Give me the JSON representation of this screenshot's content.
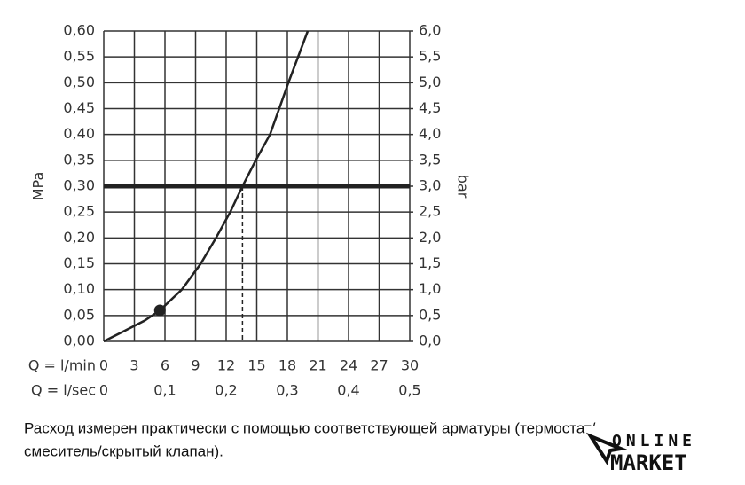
{
  "chart_data": {
    "type": "line",
    "xlabel": "Q = l/min",
    "x2label": "Q = l/sec",
    "ylabel": "MPa",
    "y2label": "bar",
    "xlim": [
      0,
      30
    ],
    "xticks": [
      0,
      3,
      6,
      9,
      12,
      15,
      18,
      21,
      24,
      27,
      30
    ],
    "x2lim": [
      0,
      0.5
    ],
    "x2ticks": [
      0,
      {
        "value": 0.1,
        "label": "0,1"
      },
      {
        "value": 0.2,
        "label": "0,2"
      },
      {
        "value": 0.3,
        "label": "0,3"
      },
      {
        "value": 0.4,
        "label": "0,4"
      },
      {
        "value": 0.5,
        "label": "0,5"
      }
    ],
    "ylim": [
      0,
      0.6
    ],
    "yticks": [
      {
        "value": 0,
        "label": "0,00"
      },
      {
        "value": 0.05,
        "label": "0,05"
      },
      {
        "value": 0.1,
        "label": "0,10"
      },
      {
        "value": 0.15,
        "label": "0,15"
      },
      {
        "value": 0.2,
        "label": "0,20"
      },
      {
        "value": 0.25,
        "label": "0,25"
      },
      {
        "value": 0.3,
        "label": "0,30"
      },
      {
        "value": 0.35,
        "label": "0,35"
      },
      {
        "value": 0.4,
        "label": "0,40"
      },
      {
        "value": 0.45,
        "label": "0,45"
      },
      {
        "value": 0.5,
        "label": "0,50"
      },
      {
        "value": 0.55,
        "label": "0,55"
      },
      {
        "value": 0.6,
        "label": "0,60"
      }
    ],
    "y2lim": [
      0,
      6
    ],
    "y2ticks": [
      {
        "value": 0,
        "label": "0,0"
      },
      {
        "value": 0.5,
        "label": "0,5"
      },
      {
        "value": 1,
        "label": "1,0"
      },
      {
        "value": 1.5,
        "label": "1,5"
      },
      {
        "value": 2,
        "label": "2,0"
      },
      {
        "value": 2.5,
        "label": "2,5"
      },
      {
        "value": 3,
        "label": "3,0"
      },
      {
        "value": 3.5,
        "label": "3,5"
      },
      {
        "value": 4,
        "label": "4,0"
      },
      {
        "value": 4.5,
        "label": "4,5"
      },
      {
        "value": 5,
        "label": "5,0"
      },
      {
        "value": 5.5,
        "label": "5,5"
      },
      {
        "value": 6,
        "label": "6,0"
      }
    ],
    "grid": true,
    "color": "#222222",
    "x": [
      0,
      2,
      4,
      5.5,
      7.65,
      9.5,
      11,
      12.4,
      13.6,
      14.9,
      16.3,
      18.1,
      20
    ],
    "values": [
      0,
      0.02,
      0.04,
      0.06,
      0.1,
      0.15,
      0.2,
      0.25,
      0.3,
      0.35,
      0.4,
      0.5,
      0.6
    ],
    "marker": {
      "x": 5.5,
      "y": 0.06
    },
    "operating_point": {
      "x": 13.6,
      "y": 0.3
    }
  },
  "caption": [
    "Расход измерен практически с помощью соответствующей арматуры (термостат/",
    "смеситель/скрытый клапан)."
  ],
  "logo": [
    "ONLINE",
    "MARKET"
  ]
}
